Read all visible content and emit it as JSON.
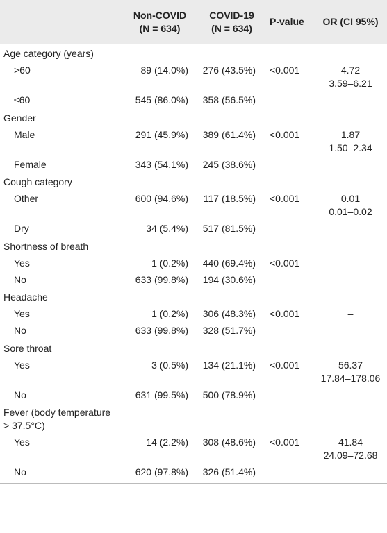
{
  "table": {
    "header": [
      [
        "Non-COVID",
        "(N = 634)"
      ],
      [
        "COVID-19",
        "(N = 634)"
      ],
      [
        "P-value"
      ],
      [
        "OR (CI 95%)"
      ]
    ],
    "rows": [
      {
        "label": "Age category (years)"
      },
      {
        "label": ">60",
        "cells": [
          "89 (14.0%)",
          "276 (43.5%)",
          "<0.001",
          [
            "4.72",
            "3.59–6.21"
          ]
        ]
      },
      {
        "label": "≤60",
        "cells": [
          "545 (86.0%)",
          "358 (56.5%)"
        ]
      },
      {
        "label": "Gender"
      },
      {
        "label": "Male",
        "cells": [
          "291 (45.9%)",
          "389 (61.4%)",
          "<0.001",
          [
            "1.87",
            "1.50–2.34"
          ]
        ]
      },
      {
        "label": "Female",
        "cells": [
          "343 (54.1%)",
          "245 (38.6%)"
        ]
      },
      {
        "label": "Cough category"
      },
      {
        "label": "Other",
        "cells": [
          "600 (94.6%)",
          "117 (18.5%)",
          "<0.001",
          [
            "0.01",
            "0.01–0.02"
          ]
        ]
      },
      {
        "label": "Dry",
        "cells": [
          "34 (5.4%)",
          "517 (81.5%)"
        ]
      },
      {
        "label": "Shortness of breath"
      },
      {
        "label": "Yes",
        "cells": [
          "1 (0.2%)",
          "440 (69.4%)",
          "<0.001",
          [
            "–"
          ]
        ]
      },
      {
        "label": "No",
        "cells": [
          "633 (99.8%)",
          "194 (30.6%)"
        ]
      },
      {
        "label": "Headache"
      },
      {
        "label": "Yes",
        "cells": [
          "1 (0.2%)",
          "306 (48.3%)",
          "<0.001",
          [
            "–"
          ]
        ]
      },
      {
        "label": "No",
        "cells": [
          "633 (99.8%)",
          "328 (51.7%)"
        ]
      },
      {
        "label": "Sore throat"
      },
      {
        "label": "Yes",
        "cells": [
          "3 (0.5%)",
          "134 (21.1%)",
          "<0.001",
          [
            "56.37",
            "17.84–178.06"
          ]
        ]
      },
      {
        "label": "No",
        "cells": [
          "631 (99.5%)",
          "500 (78.9%)"
        ]
      },
      {
        "label": "Fever (body temperature > 37.5°C)"
      },
      {
        "label": "Yes",
        "cells": [
          "14 (2.2%)",
          "308 (48.6%)",
          "<0.001",
          [
            "41.84",
            "24.09–72.68"
          ]
        ]
      },
      {
        "label": "No",
        "cells": [
          "620 (97.8%)",
          "326 (51.4%)"
        ]
      }
    ]
  }
}
